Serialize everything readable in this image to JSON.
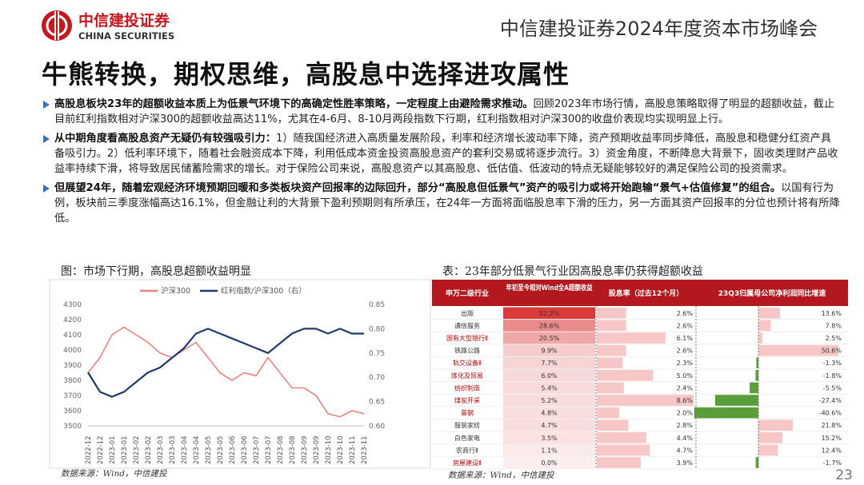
{
  "header": {
    "logo_cn": "中信建投证券",
    "logo_en": "CHINA SECURITIES",
    "event": "中信建投证券2024年度资本市场峰会"
  },
  "title": "牛熊转换，期权思维，高股息中选择进攻属性",
  "bullets": [
    {
      "bold": "高股息板块23年的超额收益本质上为低景气环境下的高确定性胜率策略，一定程度上由避险需求推动。",
      "text": "回顾2023年市场行情，高股息策略取得了明显的超额收益，截止目前红利指数相对沪深300的超额收益高达11%，尤其在4-6月、8-10月两段指数下行期，红利指数相对沪深300的收盘价表现均实现明显上行。"
    },
    {
      "bold": "从中期角度看高股息资产无疑仍有较强吸引力：",
      "text": "1）随我国经济进入高质量发展阶段，利率和经济增长波动率下降，资产预期收益率同步降低，高股息和稳健分红资产具备吸引力。2）低利率环境下，随着社会融资成本下降，利用低成本资金投资高股息资产的套利交易或将逐步流行。3）资金角度，不断降息大背景下，固收类理财产品收益率持续下滑，将导致居民储蓄险需求的增长。对于保险公司来说，高股息资产以其高股息、低估值、低波动的特点无疑能够较好的满足保险公司的投资需求。"
    },
    {
      "bold": "但展望24年，随着宏观经济环境预期回暖和多类板块资产回报率的边际回升，部分“高股息但低景气”资产的吸引力或将开始跑输“景气+估值修复”的组合。",
      "text": "以国有行为例，板块前三季度涨幅高达16.1%，但金融让利的大背景下盈利预期则有所承压，在24年一方面将面临股息率下滑的压力，另一方面其资产回报率的分位也预计将有所降低。"
    }
  ],
  "chart_data": {
    "type": "line",
    "caption": "图：市场下行期，高股息超额收益明显",
    "source": "数据来源：Wind，中信建投",
    "categories": [
      "2022-12",
      "2022-12",
      "2023-01",
      "2023-01",
      "2023-02",
      "2023-02",
      "2023-03",
      "2023-03",
      "2023-04",
      "2023-04",
      "2023-05",
      "2023-05",
      "2023-06",
      "2023-06",
      "2023-07",
      "2023-07",
      "2023-08",
      "2023-08",
      "2023-09",
      "2023-09",
      "2023-10",
      "2023-10",
      "2023-11",
      "2023-11"
    ],
    "series": [
      {
        "name": "沪深300",
        "color": "#f08080",
        "values": [
          3850,
          3950,
          4100,
          4150,
          4100,
          4050,
          3980,
          3950,
          4000,
          4050,
          3950,
          3850,
          3800,
          3850,
          3830,
          3950,
          3850,
          3750,
          3750,
          3700,
          3580,
          3560,
          3600,
          3580
        ]
      },
      {
        "name": "红利指数/沪深300（右）",
        "color": "#1f3a6e",
        "axis": "y2",
        "values": [
          0.71,
          0.67,
          0.66,
          0.67,
          0.69,
          0.71,
          0.72,
          0.74,
          0.76,
          0.79,
          0.8,
          0.79,
          0.78,
          0.77,
          0.76,
          0.75,
          0.77,
          0.79,
          0.8,
          0.8,
          0.79,
          0.8,
          0.79,
          0.79
        ]
      }
    ],
    "ylim": [
      3500,
      4300
    ],
    "yticks": [
      3500,
      3600,
      3700,
      3800,
      3900,
      4000,
      4100,
      4200,
      4300
    ],
    "y2lim": [
      0.6,
      0.85
    ],
    "y2ticks": [
      {
        "value": 0.6,
        "label": "0.60"
      },
      0.65,
      {
        "value": 0.7,
        "label": "0.70"
      },
      0.75,
      {
        "value": 0.8,
        "label": "0.80"
      },
      0.85
    ],
    "legend": "top"
  },
  "table": {
    "caption": "表：23年部分低景气行业因高股息率仍获得超额收益",
    "source": "数据来源：Wind，中信建投",
    "headers": [
      "申万二级行业",
      "年初至今相对Wind全A超额收益",
      "股息率（过去12个月）",
      "23Q3归属母公司净利润同比增速"
    ],
    "industries": [
      "出版",
      "通信服务",
      "国有大型银行Ⅱ",
      "铁路公路",
      "轨交设备Ⅱ",
      "炼化及贸易",
      "纺织制造",
      "煤炭开采",
      "普钢",
      "服装家纺",
      "白色家电",
      "农商行Ⅱ",
      "房屋建设Ⅱ"
    ],
    "industry_colors": [
      "#333333",
      "#333333",
      "#c00000",
      "#333333",
      "#c00000",
      "#c00000",
      "#c00000",
      "#c00000",
      "#c00000",
      "#333333",
      "#333333",
      "#333333",
      "#c00000"
    ],
    "excess": {
      "values": [
        52.3,
        28.6,
        20.5,
        9.9,
        7.7,
        6.0,
        5.4,
        5.2,
        4.8,
        4.7,
        3.5,
        1.1,
        0.0
      ],
      "value_labels": [
        "52.3%",
        "28.6%",
        "20.5%",
        "9.9%",
        "7.7%",
        "6.0%",
        "5.4%",
        "5.2%",
        "4.8%",
        "4.7%",
        "3.5%",
        "1.1%",
        "0.0%"
      ],
      "color": "#d92b2b"
    },
    "dividend": {
      "values": [
        2.6,
        2.6,
        6.1,
        2.6,
        2.3,
        5.0,
        2.4,
        8.6,
        2.0,
        2.8,
        4.4,
        4.7,
        3.9
      ],
      "value_labels": [
        "2.6%",
        "2.6%",
        "6.1%",
        "2.6%",
        "2.3%",
        "5.0%",
        "2.4%",
        "8.6%",
        "2.0%",
        "2.8%",
        "4.4%",
        "4.7%",
        "3.9%"
      ],
      "color": "#f7c6c6"
    },
    "growth": {
      "values": [
        13.6,
        7.8,
        2.5,
        50.6,
        -1.3,
        -1.8,
        -5.5,
        -27.4,
        -40.6,
        21.8,
        15.2,
        12.4,
        -1.7
      ],
      "value_labels": [
        "13.6%",
        "7.8%",
        "2.5%",
        "50.6%",
        "-1.3%",
        "-1.8%",
        "-5.5%",
        "-27.4%",
        "-40.6%",
        "21.8%",
        "15.2%",
        "12.4%",
        "-1.7%"
      ],
      "color": "#f7c6c6",
      "negative_color": "#5a9e3a"
    }
  },
  "page_number": "23"
}
